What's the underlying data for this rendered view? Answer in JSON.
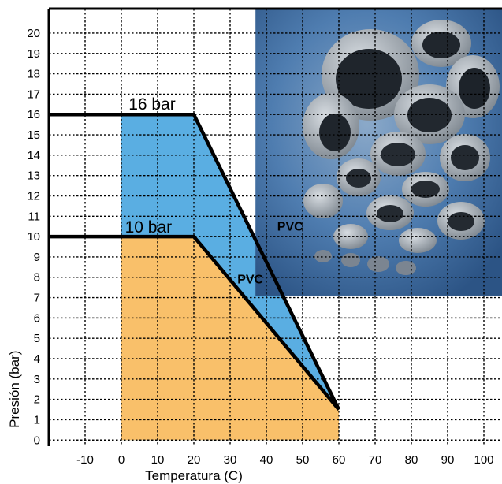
{
  "chart_data": {
    "type": "area",
    "title": "",
    "xlabel": "Temperatura (C)",
    "ylabel": "Presión (bar)",
    "xlim": [
      -20,
      105
    ],
    "ylim": [
      -0.3,
      21.2
    ],
    "xticks": [
      -10,
      0,
      10,
      20,
      30,
      40,
      50,
      60,
      70,
      80,
      90,
      100
    ],
    "yticks": [
      0,
      1,
      2,
      3,
      4,
      5,
      6,
      7,
      8,
      9,
      10,
      11,
      12,
      13,
      14,
      15,
      16,
      17,
      18,
      19,
      20
    ],
    "grid": true,
    "series": [
      {
        "name": "16 bar",
        "curve_label": "PVC",
        "color": "#5aaee2",
        "fill_from_x": 0,
        "points": [
          [
            -20,
            16
          ],
          [
            20,
            16
          ],
          [
            60,
            1.5
          ]
        ]
      },
      {
        "name": "10 bar",
        "curve_label": "PVC",
        "color": "#f9c06a",
        "fill_from_x": 0,
        "points": [
          [
            -20,
            10
          ],
          [
            20,
            10
          ],
          [
            60,
            1.5
          ]
        ]
      }
    ],
    "photo": {
      "subject": "grey PVC pipe fittings",
      "x_range": [
        37,
        105
      ],
      "y_range": [
        7.1,
        21.2
      ],
      "background": "#3c6a9e"
    }
  }
}
